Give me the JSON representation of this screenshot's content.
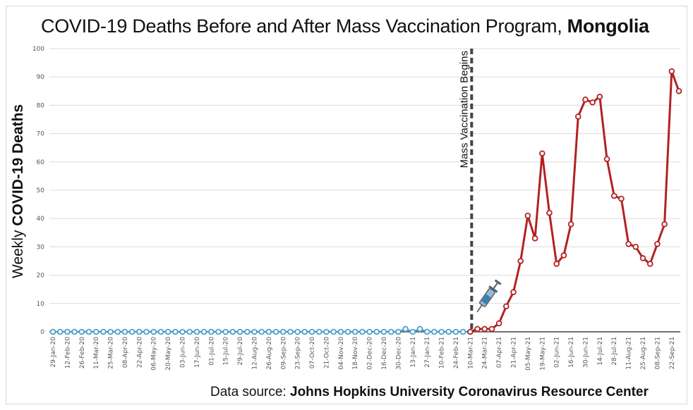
{
  "chart_data": {
    "type": "line",
    "title_main": "COVID-19 Deaths Before and After Mass Vaccination Program, ",
    "title_bold": "Mongolia",
    "ylabel_prefix": "Weekly ",
    "ylabel_bold": "COVID-19 Deaths",
    "ylim": [
      0,
      100
    ],
    "yticks": [
      0,
      10,
      20,
      30,
      40,
      50,
      60,
      70,
      80,
      90,
      100
    ],
    "grid": true,
    "annotation": "Mass Vaccination Begins",
    "annotation_index": 58,
    "source_prefix": "Data source: ",
    "source_bold": "Johns Hopkins University Coronavirus Resource Center",
    "xtick_labels": [
      "29-Jan-20",
      "12-Feb-20",
      "26-Feb-20",
      "11-Mar-20",
      "25-Mar-20",
      "08-Apr-20",
      "22-Apr-20",
      "06-May-20",
      "20-May-20",
      "03-Jun-20",
      "17-Jun-20",
      "01-Jul-20",
      "15-Jul-20",
      "29-Jul-20",
      "12-Aug-20",
      "26-Aug-20",
      "09-Sep-20",
      "23-Sep-20",
      "07-Oct-20",
      "21-Oct-20",
      "04-Nov-20",
      "18-Nov-20",
      "02-Dec-20",
      "16-Dec-20",
      "30-Dec-20",
      "13-Jan-21",
      "27-Jan-21",
      "10-Feb-21",
      "24-Feb-21",
      "10-Mar-21",
      "24-Mar-21",
      "07-Apr-21",
      "21-Apr-21",
      "05-May-21",
      "19-May-21",
      "02-Jun-21",
      "16-Jun-21",
      "30-Jun-21",
      "14-Jul-21",
      "28-Jul-21",
      "11-Aug-21",
      "25-Aug-21",
      "08-Sep-21",
      "22-Sep-21"
    ],
    "series": [
      {
        "name": "",
        "color": "#4a9fc9",
        "values": [
          0,
          0,
          0,
          0,
          0,
          0,
          0,
          0,
          0,
          0,
          0,
          0,
          0,
          0,
          0,
          0,
          0,
          0,
          0,
          0,
          0,
          0,
          0,
          0,
          0,
          0,
          0,
          0,
          0,
          0,
          0,
          0,
          0,
          0,
          0,
          0,
          0,
          0,
          0,
          0,
          0,
          0,
          0,
          0,
          0,
          0,
          0,
          0,
          0,
          1,
          0,
          1,
          0,
          0,
          0,
          0,
          0,
          0,
          0
        ]
      },
      {
        "name": "",
        "color": "#b22222",
        "values": [
          0,
          1,
          1,
          1,
          3,
          9,
          14,
          25,
          41,
          33,
          63,
          42,
          24,
          27,
          38,
          76,
          82,
          81,
          83,
          61,
          48,
          47,
          31,
          30,
          26,
          24,
          31,
          38,
          92,
          85
        ]
      }
    ]
  }
}
